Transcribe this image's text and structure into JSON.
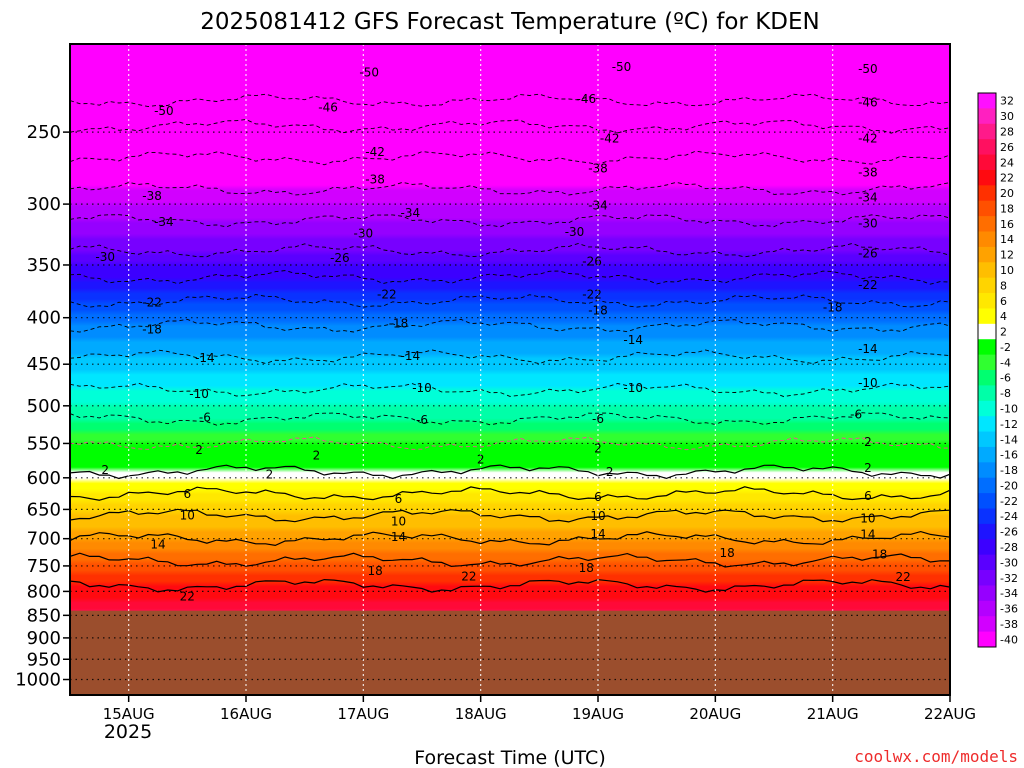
{
  "chart_data": {
    "type": "heatmap",
    "title": "2025081412 GFS Forecast Temperature (ºC) for KDEN",
    "xlabel": "Forecast Time (UTC)",
    "ylabel": "",
    "credit": "coolwx.com/models",
    "x_ticks": [
      "15AUG",
      "16AUG",
      "17AUG",
      "18AUG",
      "19AUG",
      "20AUG",
      "21AUG",
      "22AUG"
    ],
    "x_year": "2025",
    "x_range": [
      "2025-08-14T12",
      "2025-08-22T00"
    ],
    "y_axis": {
      "reversed": true,
      "scale": "log",
      "ticks": [
        250,
        300,
        350,
        400,
        450,
        500,
        550,
        600,
        650,
        700,
        750,
        800,
        850,
        900,
        950,
        1000
      ],
      "range": [
        200,
        1040
      ]
    },
    "grid": true,
    "surface": {
      "pressure": 840,
      "color": "#9b4e2d"
    },
    "colorbar": {
      "levels": [
        32,
        30,
        28,
        26,
        24,
        22,
        20,
        18,
        16,
        14,
        12,
        10,
        8,
        6,
        4,
        2,
        -2,
        -4,
        -6,
        -8,
        -10,
        -12,
        -14,
        -16,
        -18,
        -20,
        -22,
        -24,
        -26,
        -28,
        -30,
        -32,
        -34,
        -36,
        -38,
        -40
      ],
      "colors": [
        "#ff10ff",
        "#ff20c0",
        "#ff1a8a",
        "#ff1060",
        "#ff0a38",
        "#ff0a10",
        "#ff3000",
        "#ff5000",
        "#ff6e00",
        "#ff8a00",
        "#ffa200",
        "#ffbe00",
        "#ffd400",
        "#ffe800",
        "#ffff00",
        "#ffffff",
        "#00ff00",
        "#30ff30",
        "#00ff70",
        "#00ffa8",
        "#00ffd8",
        "#00e6ff",
        "#00c8ff",
        "#00aaff",
        "#008cff",
        "#006eff",
        "#0050ff",
        "#0a32ff",
        "#1e14ff",
        "#3c00ff",
        "#5a00ff",
        "#7800ff",
        "#9600ff",
        "#b400ff",
        "#d200ff",
        "#ff00ff"
      ]
    },
    "profile": [
      {
        "pressure": 200,
        "temp": -58
      },
      {
        "pressure": 250,
        "temp": -45
      },
      {
        "pressure": 300,
        "temp": -36
      },
      {
        "pressure": 350,
        "temp": -28
      },
      {
        "pressure": 400,
        "temp": -19
      },
      {
        "pressure": 450,
        "temp": -13
      },
      {
        "pressure": 500,
        "temp": -8
      },
      {
        "pressure": 550,
        "temp": -2
      },
      {
        "pressure": 600,
        "temp": 3
      },
      {
        "pressure": 650,
        "temp": 9
      },
      {
        "pressure": 700,
        "temp": 14
      },
      {
        "pressure": 750,
        "temp": 19
      },
      {
        "pressure": 800,
        "temp": 23
      },
      {
        "pressure": 840,
        "temp": 26
      }
    ],
    "contour_labels": [
      {
        "text": "-50",
        "t": 2.05,
        "p": 215
      },
      {
        "text": "-50",
        "t": 4.2,
        "p": 212
      },
      {
        "text": "-50",
        "t": 6.3,
        "p": 213
      },
      {
        "text": "-50",
        "t": 0.3,
        "p": 237
      },
      {
        "text": "-46",
        "t": 1.7,
        "p": 235
      },
      {
        "text": "-46",
        "t": 3.9,
        "p": 230
      },
      {
        "text": "-46",
        "t": 6.3,
        "p": 232
      },
      {
        "text": "-42",
        "t": 2.1,
        "p": 263
      },
      {
        "text": "-42",
        "t": 4.1,
        "p": 254
      },
      {
        "text": "-42",
        "t": 6.3,
        "p": 254
      },
      {
        "text": "-38",
        "t": 0.2,
        "p": 294
      },
      {
        "text": "-38",
        "t": 2.1,
        "p": 282
      },
      {
        "text": "-38",
        "t": 4.0,
        "p": 274
      },
      {
        "text": "-38",
        "t": 6.3,
        "p": 277
      },
      {
        "text": "-34",
        "t": 0.3,
        "p": 314
      },
      {
        "text": "-34",
        "t": 2.4,
        "p": 307
      },
      {
        "text": "-34",
        "t": 4.0,
        "p": 301
      },
      {
        "text": "-34",
        "t": 6.3,
        "p": 295
      },
      {
        "text": "-30",
        "t": -0.2,
        "p": 343
      },
      {
        "text": "-30",
        "t": 2.0,
        "p": 323
      },
      {
        "text": "-30",
        "t": 3.8,
        "p": 322
      },
      {
        "text": "-30",
        "t": 6.3,
        "p": 315
      },
      {
        "text": "-26",
        "t": 1.8,
        "p": 344
      },
      {
        "text": "-26",
        "t": 3.95,
        "p": 347
      },
      {
        "text": "-26",
        "t": 6.3,
        "p": 340
      },
      {
        "text": "-22",
        "t": 0.2,
        "p": 385
      },
      {
        "text": "-22",
        "t": 2.2,
        "p": 377
      },
      {
        "text": "-22",
        "t": 3.95,
        "p": 377
      },
      {
        "text": "-22",
        "t": 6.3,
        "p": 368
      },
      {
        "text": "-18",
        "t": 0.2,
        "p": 412
      },
      {
        "text": "-18",
        "t": 2.3,
        "p": 406
      },
      {
        "text": "-18",
        "t": 4.0,
        "p": 393
      },
      {
        "text": "-18",
        "t": 6.0,
        "p": 390
      },
      {
        "text": "-14",
        "t": 0.65,
        "p": 443
      },
      {
        "text": "-14",
        "t": 2.4,
        "p": 441
      },
      {
        "text": "-14",
        "t": 4.3,
        "p": 423
      },
      {
        "text": "-14",
        "t": 6.3,
        "p": 433
      },
      {
        "text": "-10",
        "t": 0.6,
        "p": 485
      },
      {
        "text": "-10",
        "t": 2.5,
        "p": 478
      },
      {
        "text": "-10",
        "t": 4.3,
        "p": 478
      },
      {
        "text": "-10",
        "t": 6.3,
        "p": 472
      },
      {
        "text": "-6",
        "t": 0.65,
        "p": 515
      },
      {
        "text": "-6",
        "t": 2.5,
        "p": 518
      },
      {
        "text": "-6",
        "t": 4.0,
        "p": 517
      },
      {
        "text": "-6",
        "t": 6.2,
        "p": 511
      },
      {
        "text": "2",
        "t": 0.6,
        "p": 559
      },
      {
        "text": "2",
        "t": 1.6,
        "p": 567
      },
      {
        "text": "2",
        "t": 4.0,
        "p": 557
      },
      {
        "text": "2",
        "t": 6.3,
        "p": 548
      },
      {
        "text": "2",
        "t": -0.2,
        "p": 588
      },
      {
        "text": "2",
        "t": 1.2,
        "p": 595
      },
      {
        "text": "2",
        "t": 3.0,
        "p": 573
      },
      {
        "text": "2",
        "t": 4.1,
        "p": 591
      },
      {
        "text": "2",
        "t": 6.3,
        "p": 585
      },
      {
        "text": "6",
        "t": 0.5,
        "p": 625
      },
      {
        "text": "6",
        "t": 2.3,
        "p": 633
      },
      {
        "text": "6",
        "t": 4.0,
        "p": 630
      },
      {
        "text": "6",
        "t": 6.3,
        "p": 628
      },
      {
        "text": "10",
        "t": 0.5,
        "p": 660
      },
      {
        "text": "10",
        "t": 2.3,
        "p": 670
      },
      {
        "text": "10",
        "t": 4.0,
        "p": 661
      },
      {
        "text": "10",
        "t": 6.3,
        "p": 665
      },
      {
        "text": "14",
        "t": 0.25,
        "p": 710
      },
      {
        "text": "14",
        "t": 2.3,
        "p": 697
      },
      {
        "text": "14",
        "t": 4.0,
        "p": 692
      },
      {
        "text": "14",
        "t": 6.3,
        "p": 693
      },
      {
        "text": "18",
        "t": 2.1,
        "p": 760
      },
      {
        "text": "18",
        "t": 3.9,
        "p": 754
      },
      {
        "text": "18",
        "t": 5.1,
        "p": 726
      },
      {
        "text": "18",
        "t": 6.4,
        "p": 729
      },
      {
        "text": "22",
        "t": 0.5,
        "p": 810
      },
      {
        "text": "22",
        "t": 2.9,
        "p": 770
      },
      {
        "text": "22",
        "t": 6.6,
        "p": 771
      }
    ]
  }
}
